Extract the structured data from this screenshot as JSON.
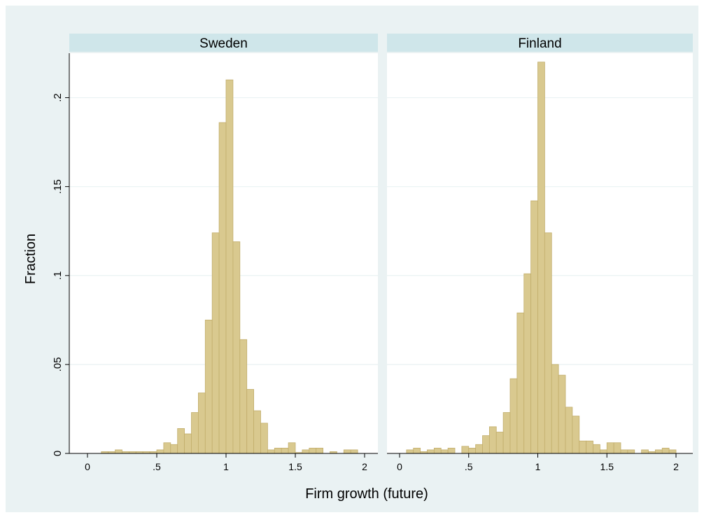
{
  "chart_data": {
    "type": "bar",
    "xlabel": "Firm growth (future)",
    "ylabel": "Fraction",
    "xlim": [
      0,
      2
    ],
    "ylim": [
      0,
      0.225
    ],
    "xticks": [
      {
        "value": 0,
        "label": "0"
      },
      {
        "value": 0.5,
        "label": ".5"
      },
      {
        "value": 1,
        "label": "1"
      },
      {
        "value": 1.5,
        "label": "1.5"
      },
      {
        "value": 2,
        "label": "2"
      }
    ],
    "yticks": [
      {
        "value": 0,
        "label": "0"
      },
      {
        "value": 0.05,
        "label": ".05"
      },
      {
        "value": 0.1,
        "label": ".1"
      },
      {
        "value": 0.15,
        "label": ".15"
      },
      {
        "value": 0.2,
        "label": ".2"
      }
    ],
    "bin_width": 0.05,
    "grid": true,
    "colors": {
      "bar_fill": "#d9c98f",
      "bar_stroke": "#c2ae6c",
      "panel_header": "#cfe6ea",
      "background": "#eaf2f3",
      "grid": "#eaf2f3"
    },
    "panels": [
      {
        "name": "Sweden",
        "bins": [
          {
            "x": 0.1,
            "y": 0.001
          },
          {
            "x": 0.15,
            "y": 0.001
          },
          {
            "x": 0.2,
            "y": 0.002
          },
          {
            "x": 0.25,
            "y": 0.001
          },
          {
            "x": 0.3,
            "y": 0.001
          },
          {
            "x": 0.35,
            "y": 0.001
          },
          {
            "x": 0.4,
            "y": 0.001
          },
          {
            "x": 0.45,
            "y": 0.001
          },
          {
            "x": 0.5,
            "y": 0.002
          },
          {
            "x": 0.55,
            "y": 0.006
          },
          {
            "x": 0.6,
            "y": 0.005
          },
          {
            "x": 0.65,
            "y": 0.014
          },
          {
            "x": 0.7,
            "y": 0.011
          },
          {
            "x": 0.75,
            "y": 0.023
          },
          {
            "x": 0.8,
            "y": 0.034
          },
          {
            "x": 0.85,
            "y": 0.075
          },
          {
            "x": 0.9,
            "y": 0.124
          },
          {
            "x": 0.95,
            "y": 0.186
          },
          {
            "x": 1.0,
            "y": 0.21
          },
          {
            "x": 1.05,
            "y": 0.119
          },
          {
            "x": 1.1,
            "y": 0.064
          },
          {
            "x": 1.15,
            "y": 0.036
          },
          {
            "x": 1.2,
            "y": 0.024
          },
          {
            "x": 1.25,
            "y": 0.017
          },
          {
            "x": 1.3,
            "y": 0.002
          },
          {
            "x": 1.35,
            "y": 0.003
          },
          {
            "x": 1.4,
            "y": 0.003
          },
          {
            "x": 1.45,
            "y": 0.006
          },
          {
            "x": 1.5,
            "y": 0.0005
          },
          {
            "x": 1.55,
            "y": 0.002
          },
          {
            "x": 1.6,
            "y": 0.003
          },
          {
            "x": 1.65,
            "y": 0.003
          },
          {
            "x": 1.75,
            "y": 0.001
          },
          {
            "x": 1.85,
            "y": 0.002
          },
          {
            "x": 1.9,
            "y": 0.002
          }
        ]
      },
      {
        "name": "Finland",
        "bins": [
          {
            "x": 0.05,
            "y": 0.002
          },
          {
            "x": 0.1,
            "y": 0.003
          },
          {
            "x": 0.15,
            "y": 0.001
          },
          {
            "x": 0.2,
            "y": 0.002
          },
          {
            "x": 0.25,
            "y": 0.003
          },
          {
            "x": 0.3,
            "y": 0.002
          },
          {
            "x": 0.35,
            "y": 0.003
          },
          {
            "x": 0.45,
            "y": 0.004
          },
          {
            "x": 0.5,
            "y": 0.003
          },
          {
            "x": 0.55,
            "y": 0.005
          },
          {
            "x": 0.6,
            "y": 0.01
          },
          {
            "x": 0.65,
            "y": 0.015
          },
          {
            "x": 0.7,
            "y": 0.012
          },
          {
            "x": 0.75,
            "y": 0.023
          },
          {
            "x": 0.8,
            "y": 0.042
          },
          {
            "x": 0.85,
            "y": 0.079
          },
          {
            "x": 0.9,
            "y": 0.101
          },
          {
            "x": 0.95,
            "y": 0.142
          },
          {
            "x": 1.0,
            "y": 0.22
          },
          {
            "x": 1.05,
            "y": 0.124
          },
          {
            "x": 1.1,
            "y": 0.05
          },
          {
            "x": 1.15,
            "y": 0.044
          },
          {
            "x": 1.2,
            "y": 0.026
          },
          {
            "x": 1.25,
            "y": 0.021
          },
          {
            "x": 1.3,
            "y": 0.007
          },
          {
            "x": 1.35,
            "y": 0.007
          },
          {
            "x": 1.4,
            "y": 0.005
          },
          {
            "x": 1.45,
            "y": 0.002
          },
          {
            "x": 1.5,
            "y": 0.006
          },
          {
            "x": 1.55,
            "y": 0.006
          },
          {
            "x": 1.6,
            "y": 0.002
          },
          {
            "x": 1.65,
            "y": 0.002
          },
          {
            "x": 1.75,
            "y": 0.002
          },
          {
            "x": 1.8,
            "y": 0.001
          },
          {
            "x": 1.85,
            "y": 0.002
          },
          {
            "x": 1.9,
            "y": 0.003
          },
          {
            "x": 1.95,
            "y": 0.002
          }
        ]
      }
    ]
  }
}
